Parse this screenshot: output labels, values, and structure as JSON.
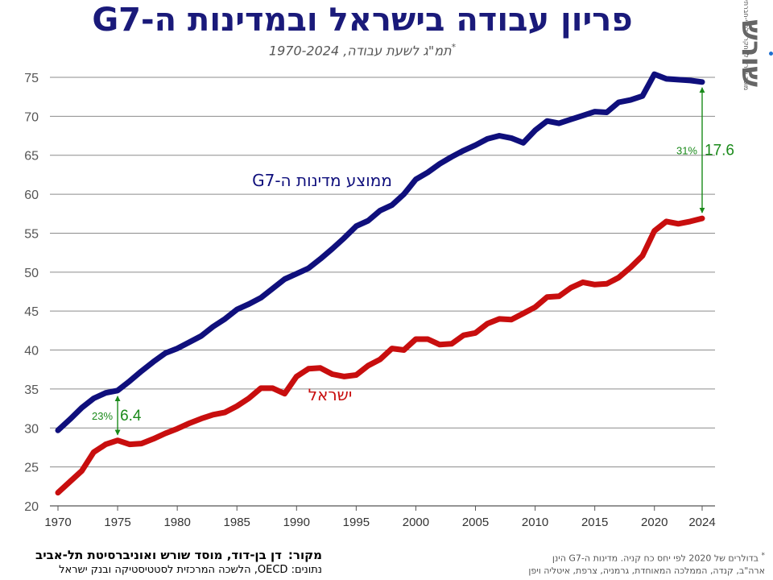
{
  "header": {
    "title": "פריון עבודה בישראל ובמדינות ה-G7",
    "subtitle": "תמ\"ג לשעת עבודה, 1970-2024",
    "subtitle_mark": "*"
  },
  "logo": {
    "word": "שורש",
    "tagline": "מוסד שורש למחקר כלכלי-חברתי",
    "dot_color": "#1e6fd0"
  },
  "source": {
    "label": "מקור:",
    "text": "דן בן-דוד, מוסד שורש ואוניברסיטת תל-אביב",
    "data_line": "נתונים: OECD, הלשכה המרכזית לסטטיסטיקה ובנק ישראל"
  },
  "footnote": {
    "mark": "*",
    "line1": "בדולרים של 2020 לפי יחס כח קניה. מדינות ה-G7 הינן",
    "line2": "ארה\"ב, קנדה, הממלכה המאוחדת, גרמניה, צרפת, איטליה ויפן"
  },
  "chart_data": {
    "type": "line",
    "xlim": [
      1970,
      2024
    ],
    "ylim": [
      20,
      75
    ],
    "xticks": [
      1970,
      1975,
      1980,
      1985,
      1990,
      1995,
      2000,
      2005,
      2010,
      2015,
      2020,
      2024
    ],
    "yticks": [
      20,
      25,
      30,
      35,
      40,
      45,
      50,
      55,
      60,
      65,
      70,
      75
    ],
    "grid": "horizontal",
    "x": [
      1970,
      1971,
      1972,
      1973,
      1974,
      1975,
      1976,
      1977,
      1978,
      1979,
      1980,
      1981,
      1982,
      1983,
      1984,
      1985,
      1986,
      1987,
      1988,
      1989,
      1990,
      1991,
      1992,
      1993,
      1994,
      1995,
      1996,
      1997,
      1998,
      1999,
      2000,
      2001,
      2002,
      2003,
      2004,
      2005,
      2006,
      2007,
      2008,
      2009,
      2010,
      2011,
      2012,
      2013,
      2014,
      2015,
      2016,
      2017,
      2018,
      2019,
      2020,
      2021,
      2022,
      2023,
      2024
    ],
    "series": [
      {
        "name": "ממוצע מדינות ה-G7",
        "color": "#0f0f7c",
        "label_position": "above-line-center",
        "values": [
          29.7,
          31.1,
          32.6,
          33.8,
          34.5,
          34.8,
          36.0,
          37.3,
          38.5,
          39.6,
          40.2,
          41.0,
          41.8,
          43.0,
          44.0,
          45.2,
          45.9,
          46.7,
          47.9,
          49.1,
          49.8,
          50.5,
          51.7,
          53.0,
          54.4,
          55.9,
          56.6,
          57.9,
          58.6,
          60.0,
          61.9,
          62.8,
          63.9,
          64.8,
          65.6,
          66.3,
          67.1,
          67.5,
          67.2,
          66.6,
          68.2,
          69.4,
          69.1,
          69.6,
          70.1,
          70.6,
          70.5,
          71.8,
          72.1,
          72.6,
          75.4,
          74.8,
          74.7,
          74.6,
          74.4
        ]
      },
      {
        "name": "ישראל",
        "color": "#c80e0e",
        "label_position": "below-line-center",
        "values": [
          21.7,
          23.1,
          24.5,
          26.9,
          27.9,
          28.4,
          27.9,
          28.0,
          28.6,
          29.3,
          29.9,
          30.6,
          31.2,
          31.7,
          32.0,
          32.8,
          33.8,
          35.1,
          35.1,
          34.4,
          36.6,
          37.6,
          37.7,
          36.9,
          36.6,
          36.8,
          38.0,
          38.8,
          40.2,
          40.0,
          41.4,
          41.4,
          40.7,
          40.8,
          41.9,
          42.2,
          43.4,
          44.0,
          43.9,
          44.7,
          45.5,
          46.8,
          46.9,
          48.0,
          48.7,
          48.4,
          48.5,
          49.3,
          50.6,
          52.1,
          55.3,
          56.5,
          56.2,
          56.5,
          56.9
        ]
      }
    ],
    "annotations": [
      {
        "x": 1975,
        "value_label": "6.4",
        "percent_label": "23%",
        "color": "#1a8a1a"
      },
      {
        "x": 2024,
        "value_label": "17.6",
        "percent_label": "31%",
        "color": "#1a8a1a"
      }
    ]
  }
}
